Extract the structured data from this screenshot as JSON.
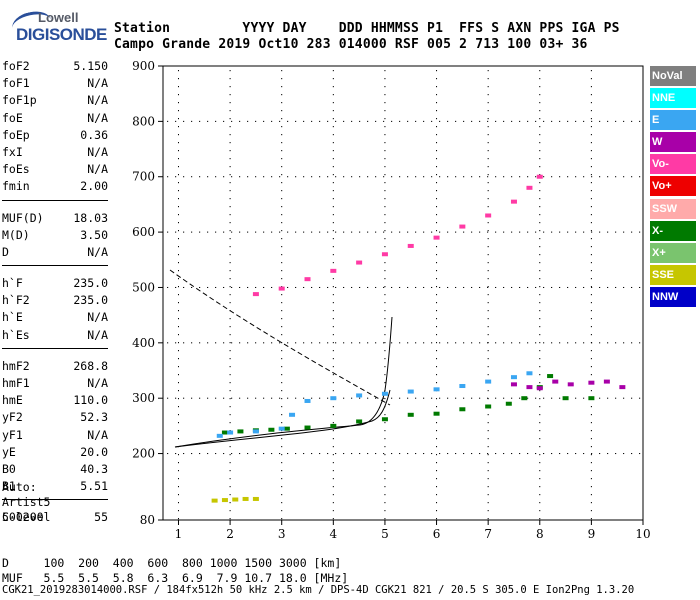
{
  "logo": {
    "line1": "Lowell",
    "line2": "DIGISONDE"
  },
  "header": {
    "line1": "Station         YYYY DAY    DDD HHMMSS P1  FFS S AXN PPS IGA PS",
    "line2": "Campo Grande 2019 Oct10 283 014000 RSF 005 2 713 100 03+ 36"
  },
  "params": [
    [
      {
        "k": "foF2",
        "v": "5.150"
      },
      {
        "k": "foF1",
        "v": "N/A"
      },
      {
        "k": "foF1p",
        "v": "N/A"
      },
      {
        "k": "foE",
        "v": "N/A"
      },
      {
        "k": "foEp",
        "v": "0.36"
      },
      {
        "k": "fxI",
        "v": "N/A"
      },
      {
        "k": "foEs",
        "v": "N/A"
      },
      {
        "k": "fmin",
        "v": "2.00"
      }
    ],
    [
      {
        "k": "MUF(D)",
        "v": "18.03"
      },
      {
        "k": "M(D)",
        "v": "3.50"
      },
      {
        "k": "D",
        "v": "N/A"
      }
    ],
    [
      {
        "k": "h`F",
        "v": "235.0"
      },
      {
        "k": "h`F2",
        "v": "235.0"
      },
      {
        "k": "h`E",
        "v": "N/A"
      },
      {
        "k": "h`Es",
        "v": "N/A"
      }
    ],
    [
      {
        "k": "hmF2",
        "v": "268.8"
      },
      {
        "k": "hmF1",
        "v": "N/A"
      },
      {
        "k": "hmE",
        "v": "110.0"
      },
      {
        "k": "yF2",
        "v": "52.3"
      },
      {
        "k": "yF1",
        "v": "N/A"
      },
      {
        "k": "yE",
        "v": "20.0"
      },
      {
        "k": "B0",
        "v": "40.3"
      },
      {
        "k": "B1",
        "v": "5.51"
      }
    ],
    [
      {
        "k": "C-level",
        "v": "55"
      }
    ]
  ],
  "meta": {
    "auto": "Auto:",
    "artist": "Artist5",
    "version": "500200"
  },
  "legend": [
    {
      "label": "NoVal",
      "color": "#7f7f7f"
    },
    {
      "label": "NNE",
      "color": "#00ffff"
    },
    {
      "label": "E",
      "color": "#3aa6f2"
    },
    {
      "label": "W",
      "color": "#a800a8"
    },
    {
      "label": "Vo-",
      "color": "#ff3aa5"
    },
    {
      "label": "Vo+",
      "color": "#ee0000"
    },
    {
      "label": "SSW",
      "color": "#ffaaaa"
    },
    {
      "label": "X-",
      "color": "#007a00"
    },
    {
      "label": "X+",
      "color": "#7ac46e"
    },
    {
      "label": "SSE",
      "color": "#c6c600"
    },
    {
      "label": "NNW",
      "color": "#0000c8"
    }
  ],
  "footer": {
    "line1": "D     100  200  400  600  800 1000 1500 3000 [km]",
    "line2": "MUF   5.5  5.5  5.8  6.3  6.9  7.9 10.7 18.0 [MHz]",
    "line3": "CGK21_2019283014000.RSF / 184fx512h 50 kHz 2.5 km / DPS-4D CGK21 821 / 20.5 S 305.0 E Ion2Png 1.3.20"
  },
  "chart_data": {
    "type": "scatter",
    "xlim": [
      0.7,
      10
    ],
    "ylim": [
      80,
      900
    ],
    "xticks": [
      1,
      2,
      3,
      4,
      5,
      6,
      7,
      8,
      9,
      10
    ],
    "yticks": [
      80,
      200,
      300,
      400,
      500,
      600,
      700,
      800,
      900
    ],
    "series": [
      {
        "name": "X-",
        "color": "#007a00",
        "x": [
          1.9,
          2.2,
          2.5,
          2.8,
          3.1,
          3.5,
          4.0,
          4.5,
          5.0,
          5.5,
          6.0,
          6.5,
          7.0,
          7.4,
          7.7,
          8.0,
          8.2,
          8.5,
          9.0
        ],
        "y": [
          238,
          240,
          242,
          243,
          245,
          247,
          250,
          258,
          262,
          270,
          272,
          280,
          285,
          290,
          300,
          320,
          340,
          300,
          300
        ]
      },
      {
        "name": "E",
        "color": "#3aa6f2",
        "x": [
          1.8,
          2.0,
          2.5,
          3.0,
          3.2,
          3.5,
          4.0,
          4.5,
          5.0,
          5.5,
          6.0,
          6.5,
          7.0,
          7.5,
          7.8
        ],
        "y": [
          232,
          238,
          240,
          245,
          270,
          295,
          300,
          305,
          308,
          312,
          316,
          322,
          330,
          338,
          345
        ]
      },
      {
        "name": "Vo-",
        "color": "#ff3aa5",
        "x": [
          2.5,
          3.0,
          3.5,
          4.0,
          4.5,
          5.0,
          5.5,
          6.0,
          6.5,
          7.0,
          7.5,
          7.8,
          8.0
        ],
        "y": [
          488,
          498,
          515,
          530,
          545,
          560,
          575,
          590,
          610,
          630,
          655,
          680,
          700
        ]
      },
      {
        "name": "W",
        "color": "#a800a8",
        "x": [
          7.5,
          7.8,
          8.0,
          8.3,
          8.6,
          9.0,
          9.3,
          9.6
        ],
        "y": [
          325,
          320,
          318,
          330,
          325,
          328,
          330,
          320
        ]
      },
      {
        "name": "SSE",
        "color": "#c6c600",
        "x": [
          1.7,
          1.9,
          2.1,
          2.3,
          2.5
        ],
        "y": [
          115,
          116,
          117,
          118,
          118
        ]
      }
    ]
  }
}
